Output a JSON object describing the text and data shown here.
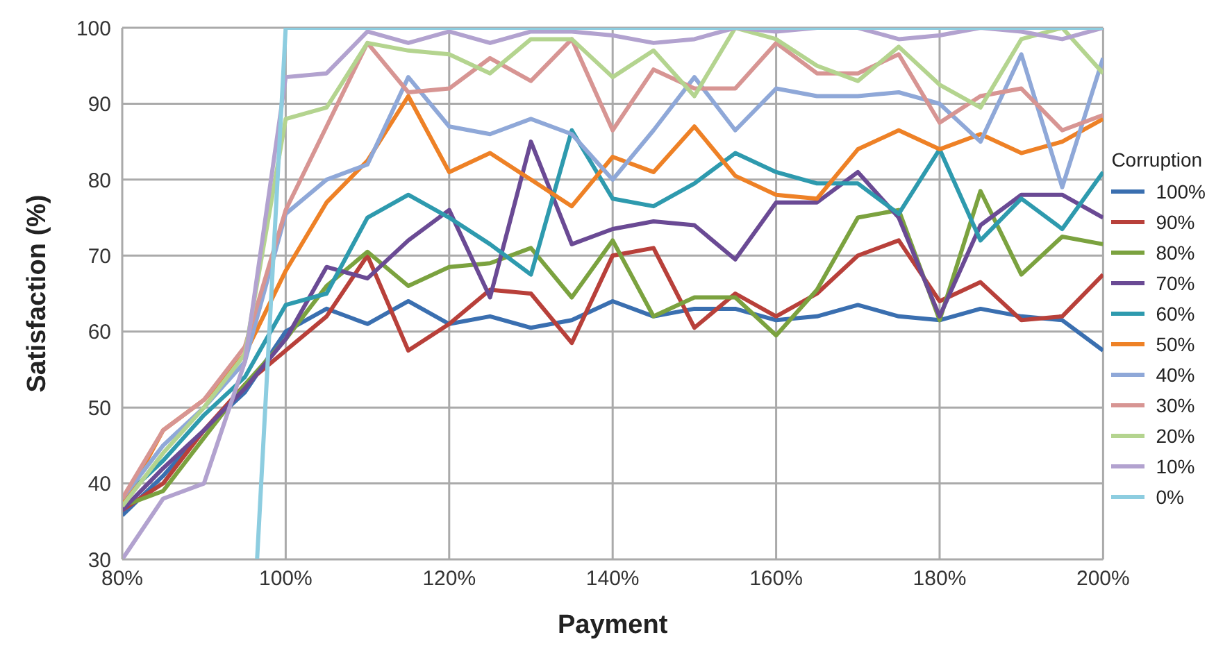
{
  "chart_data": {
    "type": "line",
    "xlabel": "Payment",
    "ylabel": "Satisfaction (%)",
    "legend_title": "Corruption",
    "legend": "right",
    "grid": true,
    "marker": "none",
    "line_style": "solid",
    "x": [
      80,
      85,
      90,
      95,
      100,
      105,
      110,
      115,
      120,
      125,
      130,
      135,
      140,
      145,
      150,
      155,
      160,
      165,
      170,
      175,
      180,
      185,
      190,
      195,
      200
    ],
    "xlim": [
      80,
      200
    ],
    "xticks": [
      {
        "value": 80,
        "label": "80%"
      },
      {
        "value": 100,
        "label": "100%"
      },
      {
        "value": 120,
        "label": "120%"
      },
      {
        "value": 140,
        "label": "140%"
      },
      {
        "value": 160,
        "label": "160%"
      },
      {
        "value": 180,
        "label": "180%"
      },
      {
        "value": 200,
        "label": "200%"
      }
    ],
    "ylim": [
      30,
      100
    ],
    "yticks": [
      30,
      40,
      50,
      60,
      70,
      80,
      90,
      100
    ],
    "series": [
      {
        "name": "100%",
        "color": "#3a6fb0",
        "values": [
          35.8,
          41,
          47,
          52,
          60,
          63,
          61,
          64,
          61,
          62,
          60.5,
          61.5,
          64,
          62,
          63,
          63,
          61.5,
          62,
          63.5,
          62,
          61.5,
          63,
          62,
          61.5,
          57.5
        ]
      },
      {
        "name": "90%",
        "color": "#b8403a",
        "values": [
          36.5,
          40,
          47,
          53,
          57.5,
          62,
          70,
          57.5,
          61,
          65.5,
          65,
          58.5,
          70,
          71,
          60.5,
          65,
          62,
          65,
          70,
          72,
          64,
          66.5,
          61.5,
          62,
          67.5
        ]
      },
      {
        "name": "80%",
        "color": "#7ba23f",
        "values": [
          37,
          39,
          46,
          53,
          59,
          66,
          70.5,
          66,
          68.5,
          69,
          71,
          64.5,
          72,
          62,
          64.5,
          64.5,
          59.5,
          65.5,
          75,
          76,
          61.5,
          78.5,
          67.5,
          72.5,
          71.5
        ]
      },
      {
        "name": "70%",
        "color": "#6a4a94",
        "values": [
          36.5,
          42,
          47,
          52.5,
          59,
          68.5,
          67,
          72,
          76,
          64.5,
          85,
          71.5,
          73.5,
          74.5,
          74,
          69.5,
          77,
          77,
          81,
          75,
          62,
          74,
          78,
          78,
          75
        ]
      },
      {
        "name": "60%",
        "color": "#2e9aae",
        "values": [
          38,
          43,
          49,
          54,
          63.5,
          65,
          75,
          78,
          75,
          71.5,
          67.5,
          86.5,
          77.5,
          76.5,
          79.5,
          83.5,
          81,
          79.5,
          79.5,
          75.5,
          84,
          72,
          77.5,
          73.5,
          81
        ]
      },
      {
        "name": "50%",
        "color": "#ee8126",
        "values": [
          37,
          47,
          51,
          57,
          68,
          77,
          82.5,
          91,
          81,
          83.5,
          80,
          76.5,
          83,
          81,
          87,
          80.5,
          78,
          77.5,
          84,
          86.5,
          84,
          86,
          83.5,
          85,
          88
        ]
      },
      {
        "name": "40%",
        "color": "#8fa8d8",
        "values": [
          38,
          45,
          50,
          56,
          75.5,
          80,
          82,
          93.5,
          87,
          86,
          88,
          86,
          80,
          86.5,
          93.5,
          86.5,
          92,
          91,
          91,
          91.5,
          90,
          85,
          96.5,
          79,
          96
        ]
      },
      {
        "name": "30%",
        "color": "#d79593",
        "values": [
          38,
          47,
          51,
          58,
          76,
          87,
          98,
          91.5,
          92,
          96,
          93,
          98.5,
          86.5,
          94.5,
          92,
          92,
          98,
          94,
          94,
          96.5,
          87.5,
          91,
          92,
          86.5,
          88.5
        ]
      },
      {
        "name": "20%",
        "color": "#b4d48f",
        "values": [
          37,
          44,
          50,
          57,
          88,
          89.5,
          98,
          97,
          96.5,
          94,
          98.5,
          98.5,
          93.5,
          97,
          91,
          100,
          98.5,
          95,
          93,
          97.5,
          92.5,
          89.5,
          98.5,
          100,
          94
        ]
      },
      {
        "name": "10%",
        "color": "#b2a2cf",
        "values": [
          30,
          38,
          40,
          56,
          93.5,
          94,
          99.5,
          98,
          99.5,
          98,
          99.5,
          99.5,
          99,
          98,
          98.5,
          100,
          99.5,
          100,
          100,
          98.5,
          99,
          100,
          99.5,
          98.5,
          100
        ]
      },
      {
        "name": "0%",
        "color": "#8dcde0",
        "x": [
          96.5,
          100,
          105,
          110,
          115,
          120,
          125,
          130,
          135,
          140,
          145,
          150,
          155,
          160,
          165,
          170,
          175,
          180,
          185,
          190,
          195,
          200
        ],
        "values": [
          30,
          100,
          100,
          100,
          100,
          100,
          100,
          100,
          100,
          100,
          100,
          100,
          100,
          100,
          100,
          100,
          100,
          100,
          100,
          100,
          100,
          100
        ]
      }
    ]
  }
}
